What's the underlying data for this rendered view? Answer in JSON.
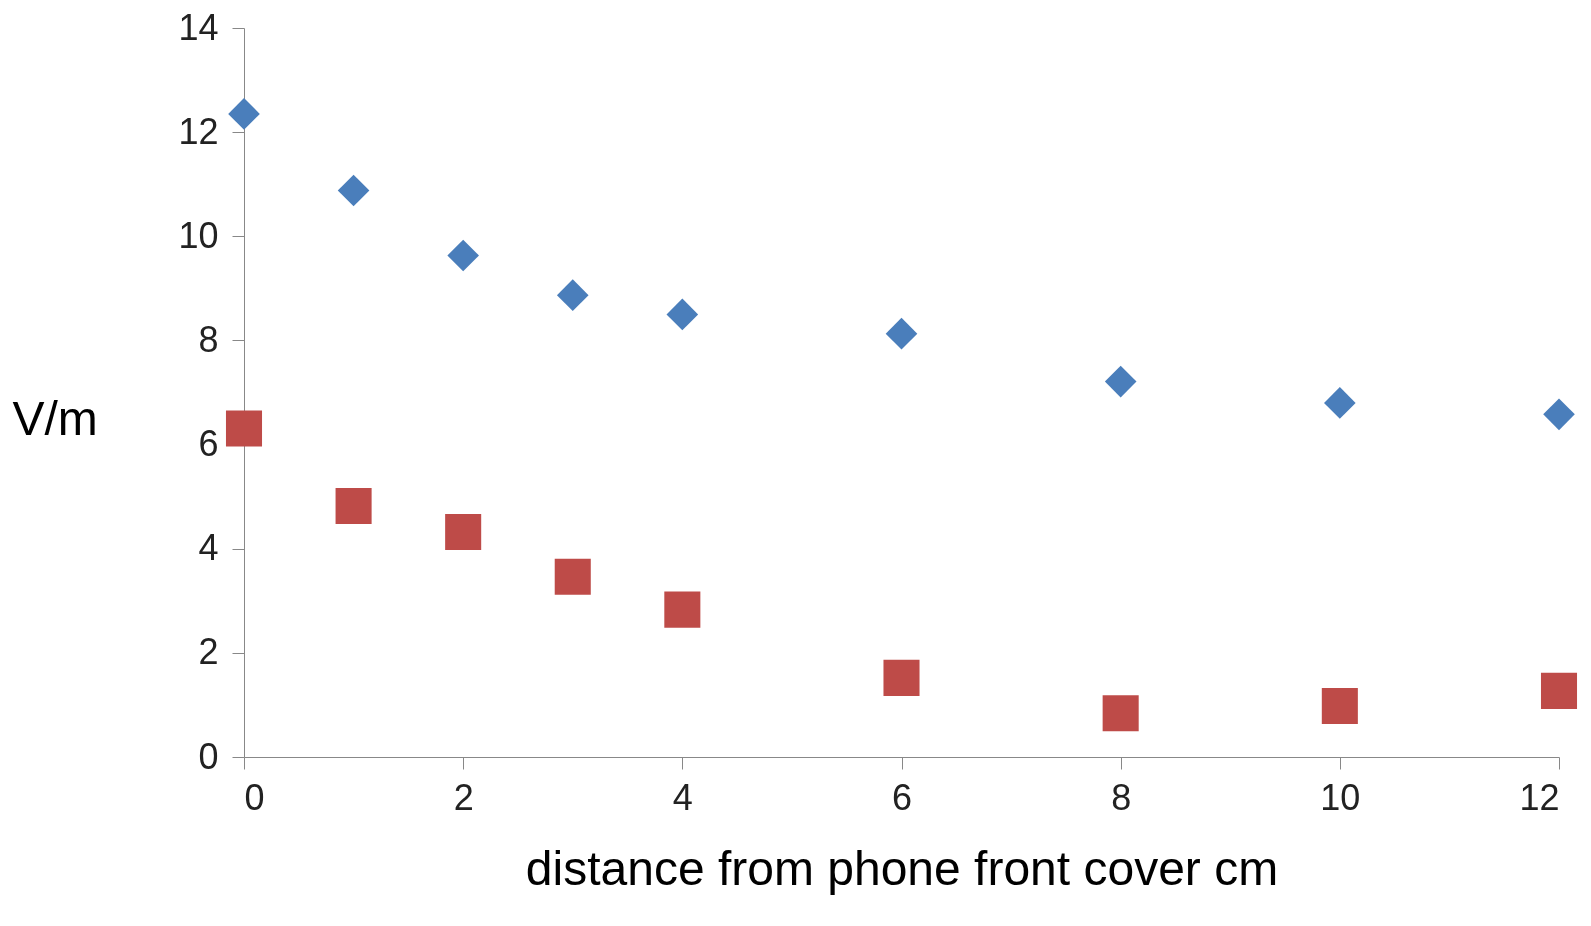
{
  "chart_data": {
    "type": "scatter",
    "xlabel": "distance from phone front cover cm",
    "ylabel": "V/m",
    "x": [
      0,
      1,
      2,
      3,
      4,
      6,
      8,
      10,
      12
    ],
    "series": [
      {
        "color": "#4a7ebb",
        "marker": "diamond",
        "values": [
          12.35,
          10.88,
          9.63,
          8.87,
          8.5,
          8.13,
          7.21,
          6.8,
          6.58
        ]
      },
      {
        "color": "#be4b48",
        "marker": "square",
        "values": [
          6.31,
          4.82,
          4.32,
          3.46,
          2.83,
          1.52,
          0.84,
          0.98,
          1.27
        ]
      }
    ],
    "xlim": [
      0,
      12
    ],
    "xticks": [
      0,
      2,
      4,
      6,
      8,
      10,
      12
    ],
    "ylim": [
      0,
      14
    ],
    "yticks": [
      0,
      2,
      4,
      6,
      8,
      10,
      12,
      14
    ],
    "grid": false
  }
}
